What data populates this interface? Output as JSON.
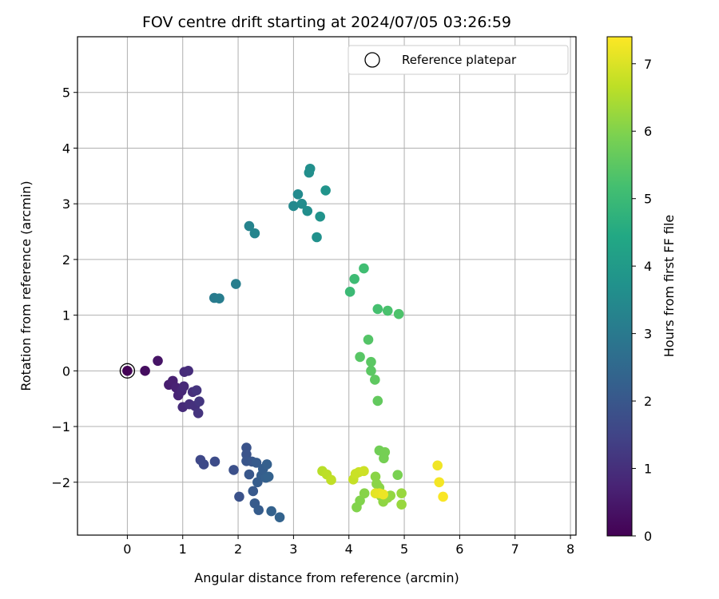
{
  "chart_data": {
    "type": "scatter",
    "title": "FOV centre drift starting at 2024/07/05 03:26:59",
    "xlabel": "Angular distance from reference (arcmin)",
    "ylabel": "Rotation from reference (arcmin)",
    "xlim": [
      -0.9,
      8.1
    ],
    "ylim": [
      -2.95,
      6.0
    ],
    "xticks": [
      0,
      1,
      2,
      3,
      4,
      5,
      6,
      7,
      8
    ],
    "yticks": [
      -2,
      -1,
      0,
      1,
      2,
      3,
      4,
      5
    ],
    "grid": true,
    "legend": {
      "placement": "top-right",
      "entries": [
        "Reference platepar"
      ]
    },
    "reference_point": {
      "x": 0,
      "y": 0
    },
    "colorbar": {
      "label": "Hours from first FF file",
      "colormap": "viridis",
      "range": [
        0,
        7.4
      ],
      "ticks": [
        0,
        1,
        2,
        3,
        4,
        5,
        6,
        7
      ]
    },
    "points": [
      {
        "x": 0.0,
        "y": 0.0,
        "c": 0.05
      },
      {
        "x": 0.32,
        "y": 0.0,
        "c": 0.25
      },
      {
        "x": 0.55,
        "y": 0.18,
        "c": 0.4
      },
      {
        "x": 0.75,
        "y": -0.25,
        "c": 0.6
      },
      {
        "x": 0.82,
        "y": -0.18,
        "c": 0.65
      },
      {
        "x": 0.88,
        "y": -0.3,
        "c": 0.7
      },
      {
        "x": 0.92,
        "y": -0.44,
        "c": 0.75
      },
      {
        "x": 0.98,
        "y": -0.36,
        "c": 0.8
      },
      {
        "x": 1.02,
        "y": -0.28,
        "c": 0.85
      },
      {
        "x": 1.0,
        "y": -0.65,
        "c": 0.9
      },
      {
        "x": 1.03,
        "y": -0.02,
        "c": 0.9
      },
      {
        "x": 1.1,
        "y": 0.0,
        "c": 0.95
      },
      {
        "x": 1.12,
        "y": -0.6,
        "c": 1.0
      },
      {
        "x": 1.18,
        "y": -0.38,
        "c": 1.0
      },
      {
        "x": 1.22,
        "y": -0.63,
        "c": 1.05
      },
      {
        "x": 1.25,
        "y": -0.35,
        "c": 1.1
      },
      {
        "x": 1.28,
        "y": -0.76,
        "c": 1.1
      },
      {
        "x": 1.3,
        "y": -0.55,
        "c": 1.15
      },
      {
        "x": 1.32,
        "y": -1.6,
        "c": 1.6
      },
      {
        "x": 1.38,
        "y": -1.68,
        "c": 1.65
      },
      {
        "x": 1.58,
        "y": -1.63,
        "c": 1.7
      },
      {
        "x": 1.92,
        "y": -1.78,
        "c": 1.8
      },
      {
        "x": 2.02,
        "y": -2.26,
        "c": 1.85
      },
      {
        "x": 2.15,
        "y": -1.38,
        "c": 1.9
      },
      {
        "x": 2.15,
        "y": -1.5,
        "c": 1.9
      },
      {
        "x": 2.15,
        "y": -1.62,
        "c": 1.95
      },
      {
        "x": 2.2,
        "y": -1.86,
        "c": 2.0
      },
      {
        "x": 2.25,
        "y": -1.63,
        "c": 2.0
      },
      {
        "x": 2.27,
        "y": -2.16,
        "c": 2.05
      },
      {
        "x": 2.3,
        "y": -2.38,
        "c": 2.1
      },
      {
        "x": 2.33,
        "y": -1.65,
        "c": 2.1
      },
      {
        "x": 2.35,
        "y": -2.0,
        "c": 2.15
      },
      {
        "x": 2.37,
        "y": -2.5,
        "c": 2.15
      },
      {
        "x": 2.42,
        "y": -1.88,
        "c": 2.2
      },
      {
        "x": 2.45,
        "y": -1.76,
        "c": 2.2
      },
      {
        "x": 2.5,
        "y": -1.92,
        "c": 2.25
      },
      {
        "x": 2.52,
        "y": -1.68,
        "c": 2.25
      },
      {
        "x": 2.55,
        "y": -1.9,
        "c": 2.3
      },
      {
        "x": 2.6,
        "y": -2.52,
        "c": 2.3
      },
      {
        "x": 2.75,
        "y": -2.63,
        "c": 2.35
      },
      {
        "x": 1.57,
        "y": 1.31,
        "c": 3.05
      },
      {
        "x": 1.66,
        "y": 1.3,
        "c": 3.1
      },
      {
        "x": 1.96,
        "y": 1.56,
        "c": 3.15
      },
      {
        "x": 2.2,
        "y": 2.6,
        "c": 3.3
      },
      {
        "x": 2.3,
        "y": 2.47,
        "c": 3.35
      },
      {
        "x": 3.0,
        "y": 2.96,
        "c": 3.45
      },
      {
        "x": 3.08,
        "y": 3.17,
        "c": 3.5
      },
      {
        "x": 3.15,
        "y": 3.0,
        "c": 3.55
      },
      {
        "x": 3.25,
        "y": 2.87,
        "c": 3.6
      },
      {
        "x": 3.28,
        "y": 3.56,
        "c": 3.65
      },
      {
        "x": 3.3,
        "y": 3.63,
        "c": 3.65
      },
      {
        "x": 3.42,
        "y": 2.4,
        "c": 3.7
      },
      {
        "x": 3.48,
        "y": 2.77,
        "c": 3.75
      },
      {
        "x": 3.58,
        "y": 3.24,
        "c": 3.8
      },
      {
        "x": 4.02,
        "y": 1.42,
        "c": 5.0
      },
      {
        "x": 4.1,
        "y": 1.65,
        "c": 5.05
      },
      {
        "x": 4.27,
        "y": 1.84,
        "c": 5.1
      },
      {
        "x": 4.52,
        "y": 1.11,
        "c": 5.2
      },
      {
        "x": 4.7,
        "y": 1.08,
        "c": 5.25
      },
      {
        "x": 4.9,
        "y": 1.02,
        "c": 5.3
      },
      {
        "x": 4.35,
        "y": 0.56,
        "c": 5.4
      },
      {
        "x": 4.2,
        "y": 0.25,
        "c": 5.45
      },
      {
        "x": 4.4,
        "y": 0.16,
        "c": 5.5
      },
      {
        "x": 4.4,
        "y": 0.0,
        "c": 5.5
      },
      {
        "x": 4.47,
        "y": -0.16,
        "c": 5.55
      },
      {
        "x": 4.52,
        "y": -0.54,
        "c": 5.6
      },
      {
        "x": 4.55,
        "y": -1.43,
        "c": 5.8
      },
      {
        "x": 4.65,
        "y": -1.46,
        "c": 5.85
      },
      {
        "x": 4.63,
        "y": -1.57,
        "c": 5.85
      },
      {
        "x": 4.88,
        "y": -1.87,
        "c": 5.9
      },
      {
        "x": 4.14,
        "y": -2.45,
        "c": 6.0
      },
      {
        "x": 4.2,
        "y": -2.33,
        "c": 6.0
      },
      {
        "x": 4.28,
        "y": -2.2,
        "c": 6.05
      },
      {
        "x": 4.48,
        "y": -1.9,
        "c": 6.1
      },
      {
        "x": 4.5,
        "y": -2.03,
        "c": 6.1
      },
      {
        "x": 4.55,
        "y": -2.1,
        "c": 6.1
      },
      {
        "x": 4.58,
        "y": -2.25,
        "c": 6.15
      },
      {
        "x": 4.62,
        "y": -2.35,
        "c": 6.15
      },
      {
        "x": 4.7,
        "y": -2.28,
        "c": 6.2
      },
      {
        "x": 4.75,
        "y": -2.24,
        "c": 6.2
      },
      {
        "x": 4.95,
        "y": -2.2,
        "c": 6.25
      },
      {
        "x": 4.95,
        "y": -2.4,
        "c": 6.25
      },
      {
        "x": 3.52,
        "y": -1.8,
        "c": 6.6
      },
      {
        "x": 3.6,
        "y": -1.86,
        "c": 6.65
      },
      {
        "x": 3.68,
        "y": -1.96,
        "c": 6.7
      },
      {
        "x": 4.08,
        "y": -1.95,
        "c": 6.75
      },
      {
        "x": 4.12,
        "y": -1.85,
        "c": 6.8
      },
      {
        "x": 4.18,
        "y": -1.82,
        "c": 6.8
      },
      {
        "x": 4.27,
        "y": -1.8,
        "c": 6.85
      },
      {
        "x": 4.48,
        "y": -2.2,
        "c": 7.1
      },
      {
        "x": 4.55,
        "y": -2.2,
        "c": 7.15
      },
      {
        "x": 4.62,
        "y": -2.22,
        "c": 7.2
      },
      {
        "x": 5.6,
        "y": -1.7,
        "c": 7.25
      },
      {
        "x": 5.63,
        "y": -2.0,
        "c": 7.3
      },
      {
        "x": 5.7,
        "y": -2.26,
        "c": 7.35
      }
    ]
  }
}
